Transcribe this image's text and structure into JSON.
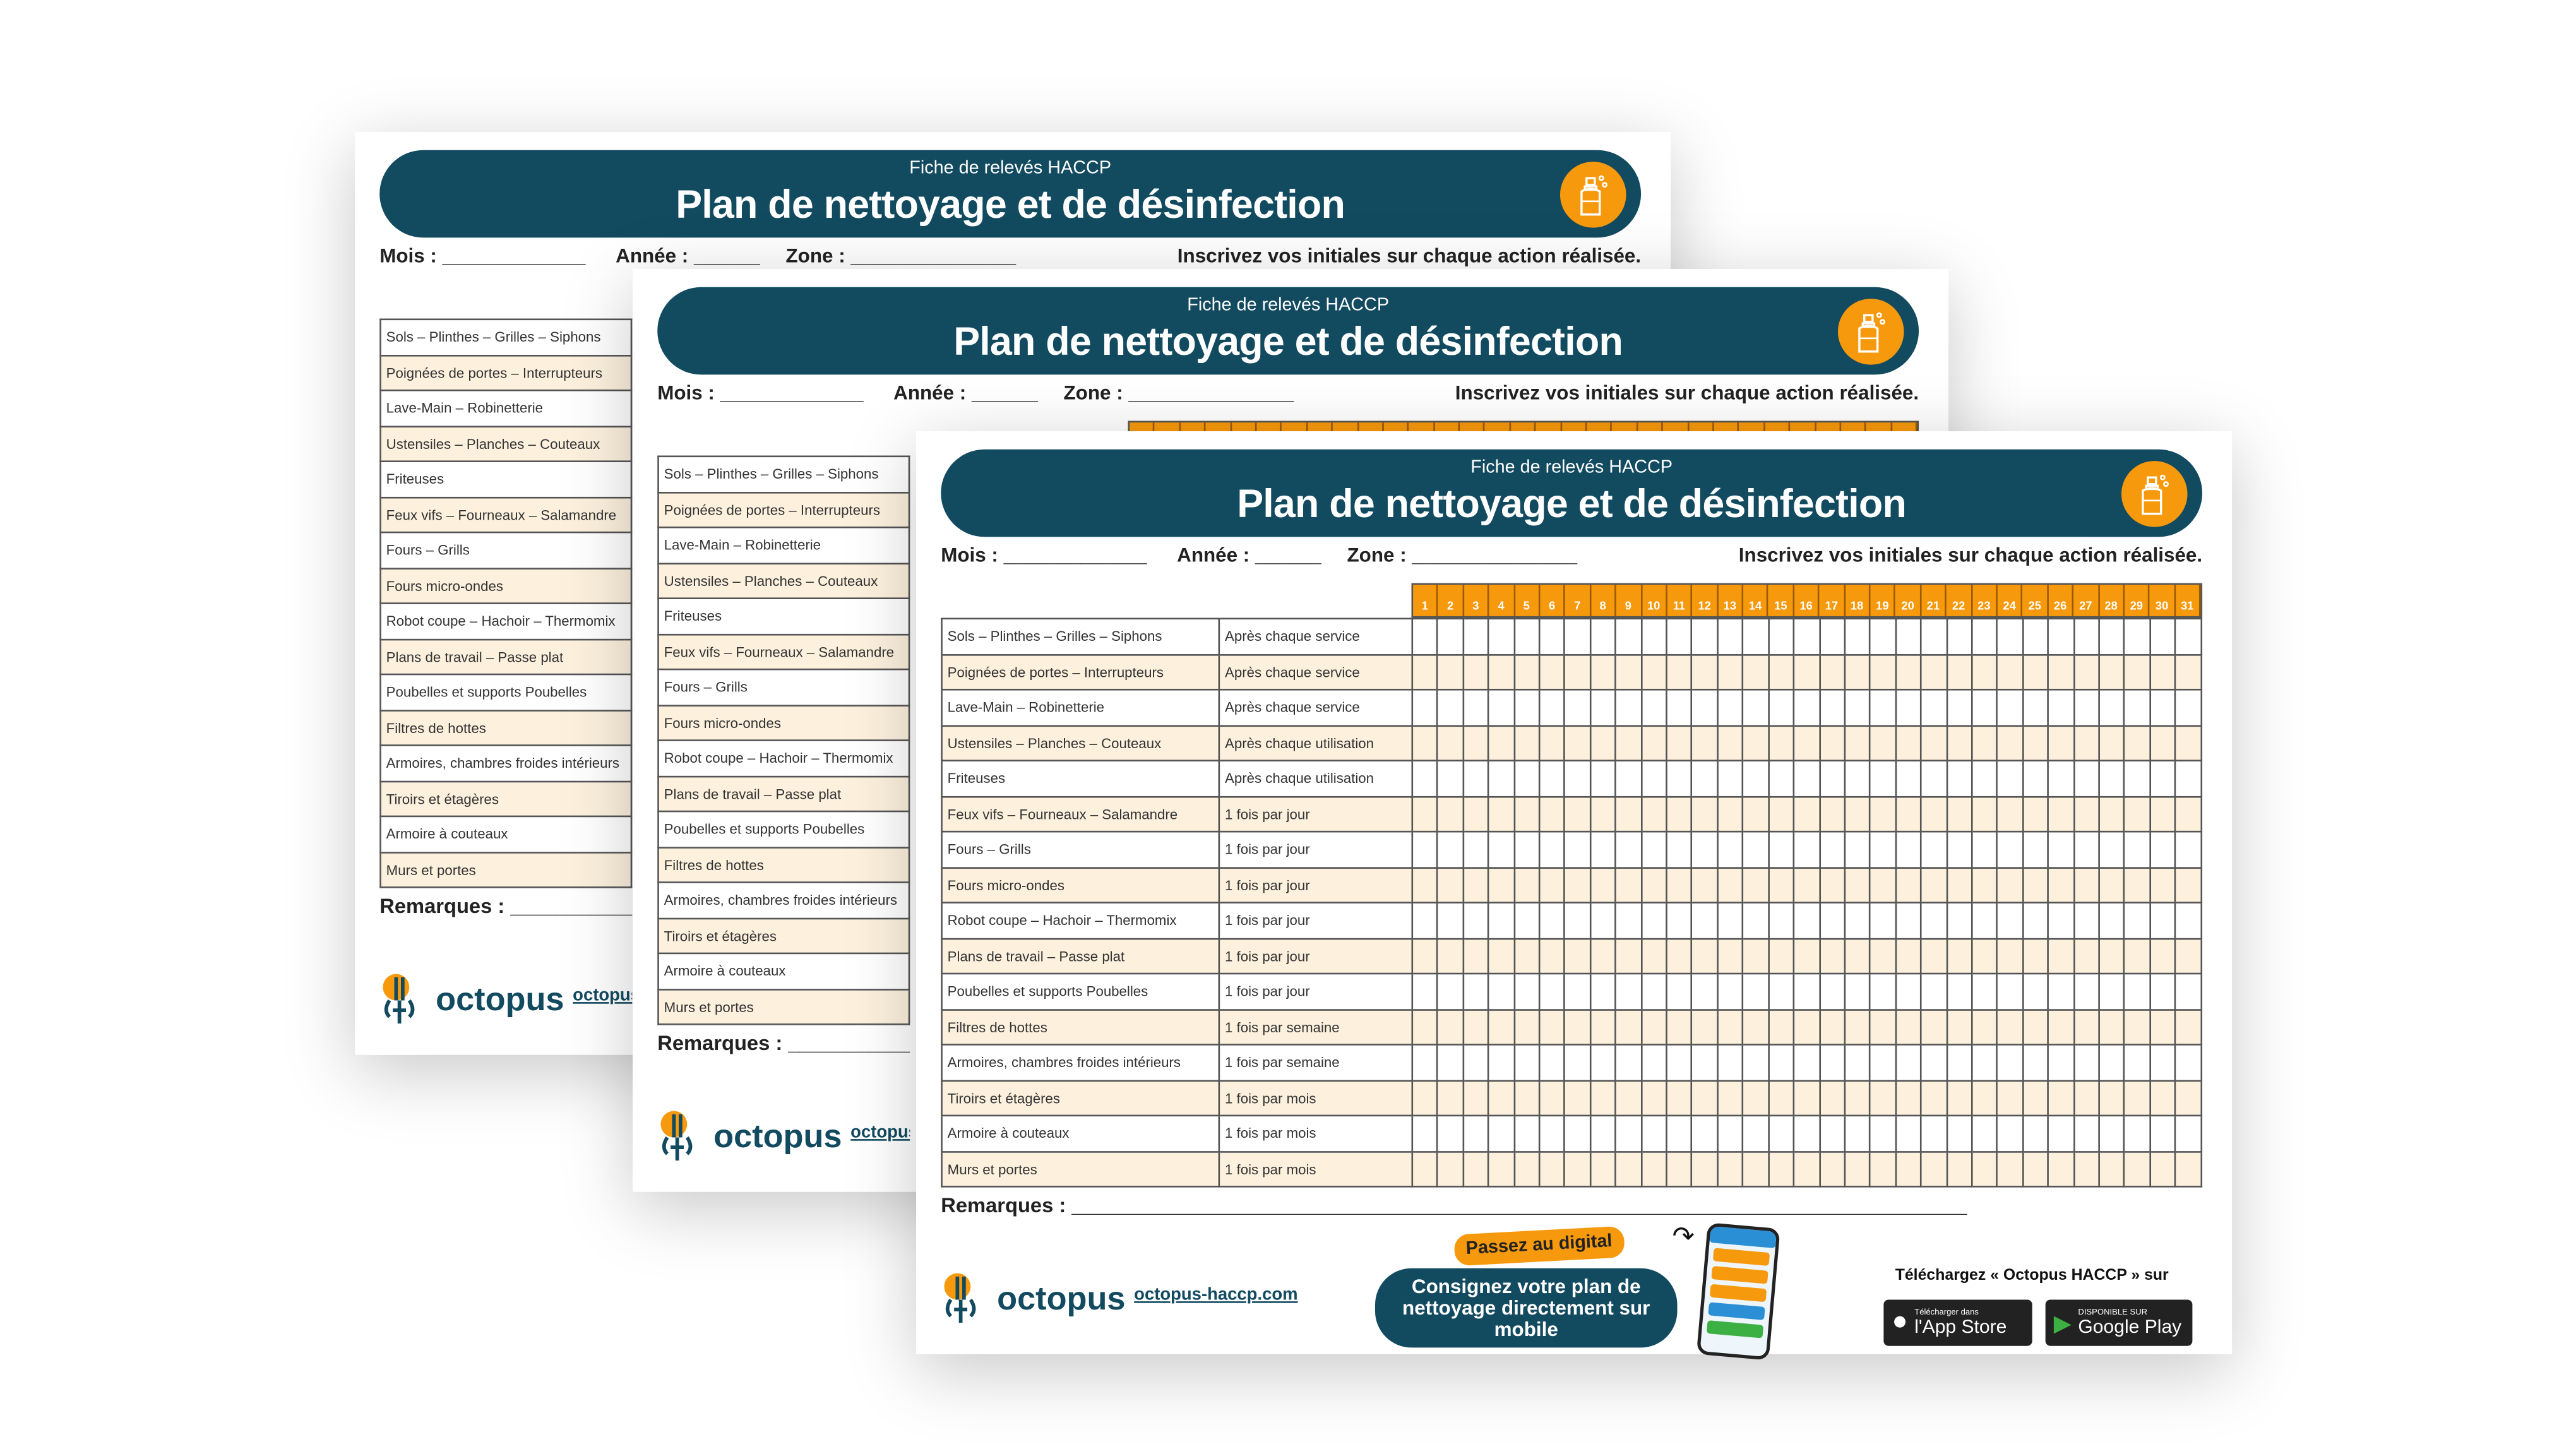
{
  "header": {
    "subtitle": "Fiche de relevés HACCP",
    "title": "Plan de nettoyage et de désinfection",
    "icon": "spray-bottle-icon"
  },
  "info": {
    "mois": "Mois : _____________",
    "annee": "Année : ______",
    "zone": "Zone : _______________",
    "instruction": "Inscrivez vos initiales sur chaque action réalisée."
  },
  "days": [
    "1",
    "2",
    "3",
    "4",
    "5",
    "6",
    "7",
    "8",
    "9",
    "10",
    "11",
    "12",
    "13",
    "14",
    "15",
    "16",
    "17",
    "18",
    "19",
    "20",
    "21",
    "22",
    "23",
    "24",
    "25",
    "26",
    "27",
    "28",
    "29",
    "30",
    "31"
  ],
  "rows": [
    {
      "item": "Sols – Plinthes – Grilles – Siphons",
      "frequency": "Après chaque service"
    },
    {
      "item": "Poignées de portes – Interrupteurs",
      "frequency": "Après chaque service"
    },
    {
      "item": "Lave-Main – Robinetterie",
      "frequency": "Après chaque service"
    },
    {
      "item": "Ustensiles – Planches – Couteaux",
      "frequency": "Après chaque utilisation"
    },
    {
      "item": "Friteuses",
      "frequency": "Après chaque utilisation"
    },
    {
      "item": "Feux vifs – Fourneaux – Salamandre",
      "frequency": "1 fois par jour"
    },
    {
      "item": "Fours – Grills",
      "frequency": "1 fois par jour"
    },
    {
      "item": "Fours micro-ondes",
      "frequency": "1 fois par jour"
    },
    {
      "item": "Robot coupe – Hachoir – Thermomix",
      "frequency": "1 fois par jour"
    },
    {
      "item": "Plans de travail – Passe plat",
      "frequency": "1 fois par jour"
    },
    {
      "item": "Poubelles et supports Poubelles",
      "frequency": "1 fois par jour"
    },
    {
      "item": "Filtres de hottes",
      "frequency": "1 fois par semaine"
    },
    {
      "item": "Armoires, chambres froides intérieurs",
      "frequency": "1 fois par semaine"
    },
    {
      "item": "Tiroirs et étagères",
      "frequency": "1 fois par mois"
    },
    {
      "item": "Armoire à couteaux",
      "frequency": "1 fois par mois"
    },
    {
      "item": "Murs et portes",
      "frequency": "1 fois par mois"
    }
  ],
  "remarks_label": "Remarques : ______________________________________________________________________________",
  "footer": {
    "logo_text": "octopus",
    "url": "octopus-haccp.com",
    "digital_tag": "Passez au digital",
    "cta": "Consignez votre plan de nettoyage directement sur mobile",
    "download_text": "Téléchargez « Octopus HACCP » sur",
    "appstore_small": "Télécharger dans",
    "appstore_large": "l'App Store",
    "googleplay_small": "DISPONIBLE SUR",
    "googleplay_large": "Google Play"
  },
  "colors": {
    "navy": "#124a60",
    "orange": "#f7990c",
    "row_alt": "#fdf1de"
  }
}
